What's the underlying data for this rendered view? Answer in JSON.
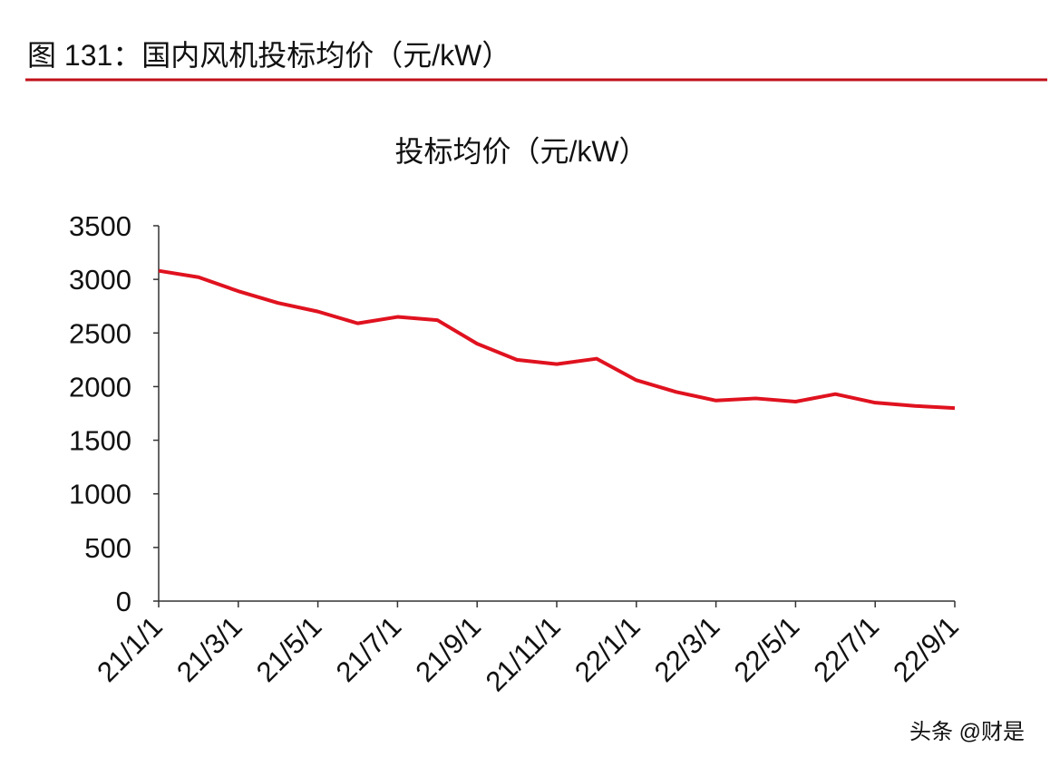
{
  "figure_title": "图 131：国内风机投标均价（元/kW）",
  "watermark": "头条 @财是",
  "chart_data": {
    "type": "line",
    "title": "投标均价（元/kW）",
    "categories": [
      "21/1/1",
      null,
      "21/3/1",
      null,
      "21/5/1",
      null,
      "21/7/1",
      null,
      "21/9/1",
      null,
      "21/11/1",
      null,
      "22/1/1",
      null,
      "22/3/1",
      null,
      "22/5/1",
      null,
      "22/7/1",
      null,
      "22/9/1"
    ],
    "series": [
      {
        "name": "投标均价",
        "color": "#e0121f",
        "values": [
          3080,
          3020,
          2890,
          2780,
          2700,
          2590,
          2650,
          2620,
          2400,
          2250,
          2210,
          2260,
          2060,
          1950,
          1870,
          1890,
          1860,
          1930,
          1850,
          1820,
          1800
        ]
      }
    ],
    "ylim": [
      0,
      3500
    ],
    "yticks": [
      0,
      500,
      1000,
      1500,
      2000,
      2500,
      3000,
      3500
    ],
    "grid": false
  }
}
